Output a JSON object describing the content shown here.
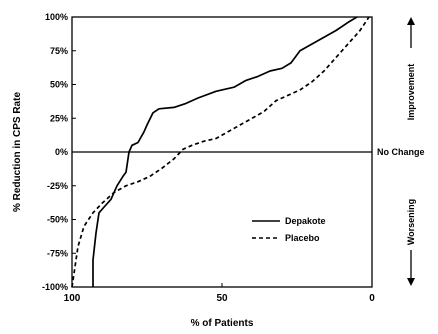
{
  "chart_data": {
    "type": "line",
    "title": "",
    "xlabel": "% of Patients",
    "ylabel": "% Reduction in CPS Rate",
    "xlim": [
      100,
      0
    ],
    "ylim": [
      -100,
      100
    ],
    "x_ticks": [
      "100",
      "50",
      "0"
    ],
    "x_tick_values": [
      100,
      50,
      0
    ],
    "y_ticks": [
      "100%",
      "75%",
      "50%",
      "25%",
      "0%",
      "-25%",
      "-50%",
      "-75%",
      "-100%"
    ],
    "y_tick_values": [
      100,
      75,
      50,
      25,
      0,
      -25,
      -50,
      -75,
      -100
    ],
    "reference_line": {
      "y": 0,
      "label": "No Change"
    },
    "annotations": {
      "up": "Improvement",
      "down": "Worsening"
    },
    "legend_position": "lower-right",
    "series": [
      {
        "name": "Depakote",
        "style": "solid",
        "color": "#000000",
        "points": [
          [
            93,
            -100
          ],
          [
            93,
            -80
          ],
          [
            92,
            -60
          ],
          [
            91,
            -45
          ],
          [
            89,
            -40
          ],
          [
            87,
            -35
          ],
          [
            85,
            -25
          ],
          [
            83,
            -18
          ],
          [
            82,
            -15
          ],
          [
            81,
            0
          ],
          [
            80,
            5
          ],
          [
            78,
            7
          ],
          [
            76,
            15
          ],
          [
            75,
            20
          ],
          [
            73,
            29
          ],
          [
            71,
            32
          ],
          [
            66,
            33
          ],
          [
            62,
            36
          ],
          [
            58,
            40
          ],
          [
            52,
            45
          ],
          [
            46,
            48
          ],
          [
            42,
            53
          ],
          [
            38,
            56
          ],
          [
            34,
            60
          ],
          [
            30,
            62
          ],
          [
            27,
            66
          ],
          [
            24,
            75
          ],
          [
            20,
            80
          ],
          [
            16,
            85
          ],
          [
            12,
            90
          ],
          [
            8,
            96
          ],
          [
            5,
            100
          ]
        ]
      },
      {
        "name": "Placebo",
        "style": "dashed",
        "color": "#000000",
        "points": [
          [
            100,
            -100
          ],
          [
            98,
            -70
          ],
          [
            96,
            -55
          ],
          [
            93,
            -45
          ],
          [
            90,
            -38
          ],
          [
            86,
            -30
          ],
          [
            82,
            -25
          ],
          [
            78,
            -22
          ],
          [
            74,
            -18
          ],
          [
            70,
            -12
          ],
          [
            66,
            -5
          ],
          [
            63,
            2
          ],
          [
            60,
            5
          ],
          [
            56,
            8
          ],
          [
            52,
            10
          ],
          [
            48,
            15
          ],
          [
            44,
            20
          ],
          [
            40,
            25
          ],
          [
            36,
            30
          ],
          [
            32,
            38
          ],
          [
            28,
            42
          ],
          [
            24,
            46
          ],
          [
            20,
            52
          ],
          [
            16,
            60
          ],
          [
            12,
            70
          ],
          [
            8,
            80
          ],
          [
            4,
            90
          ],
          [
            1,
            100
          ]
        ]
      }
    ]
  }
}
